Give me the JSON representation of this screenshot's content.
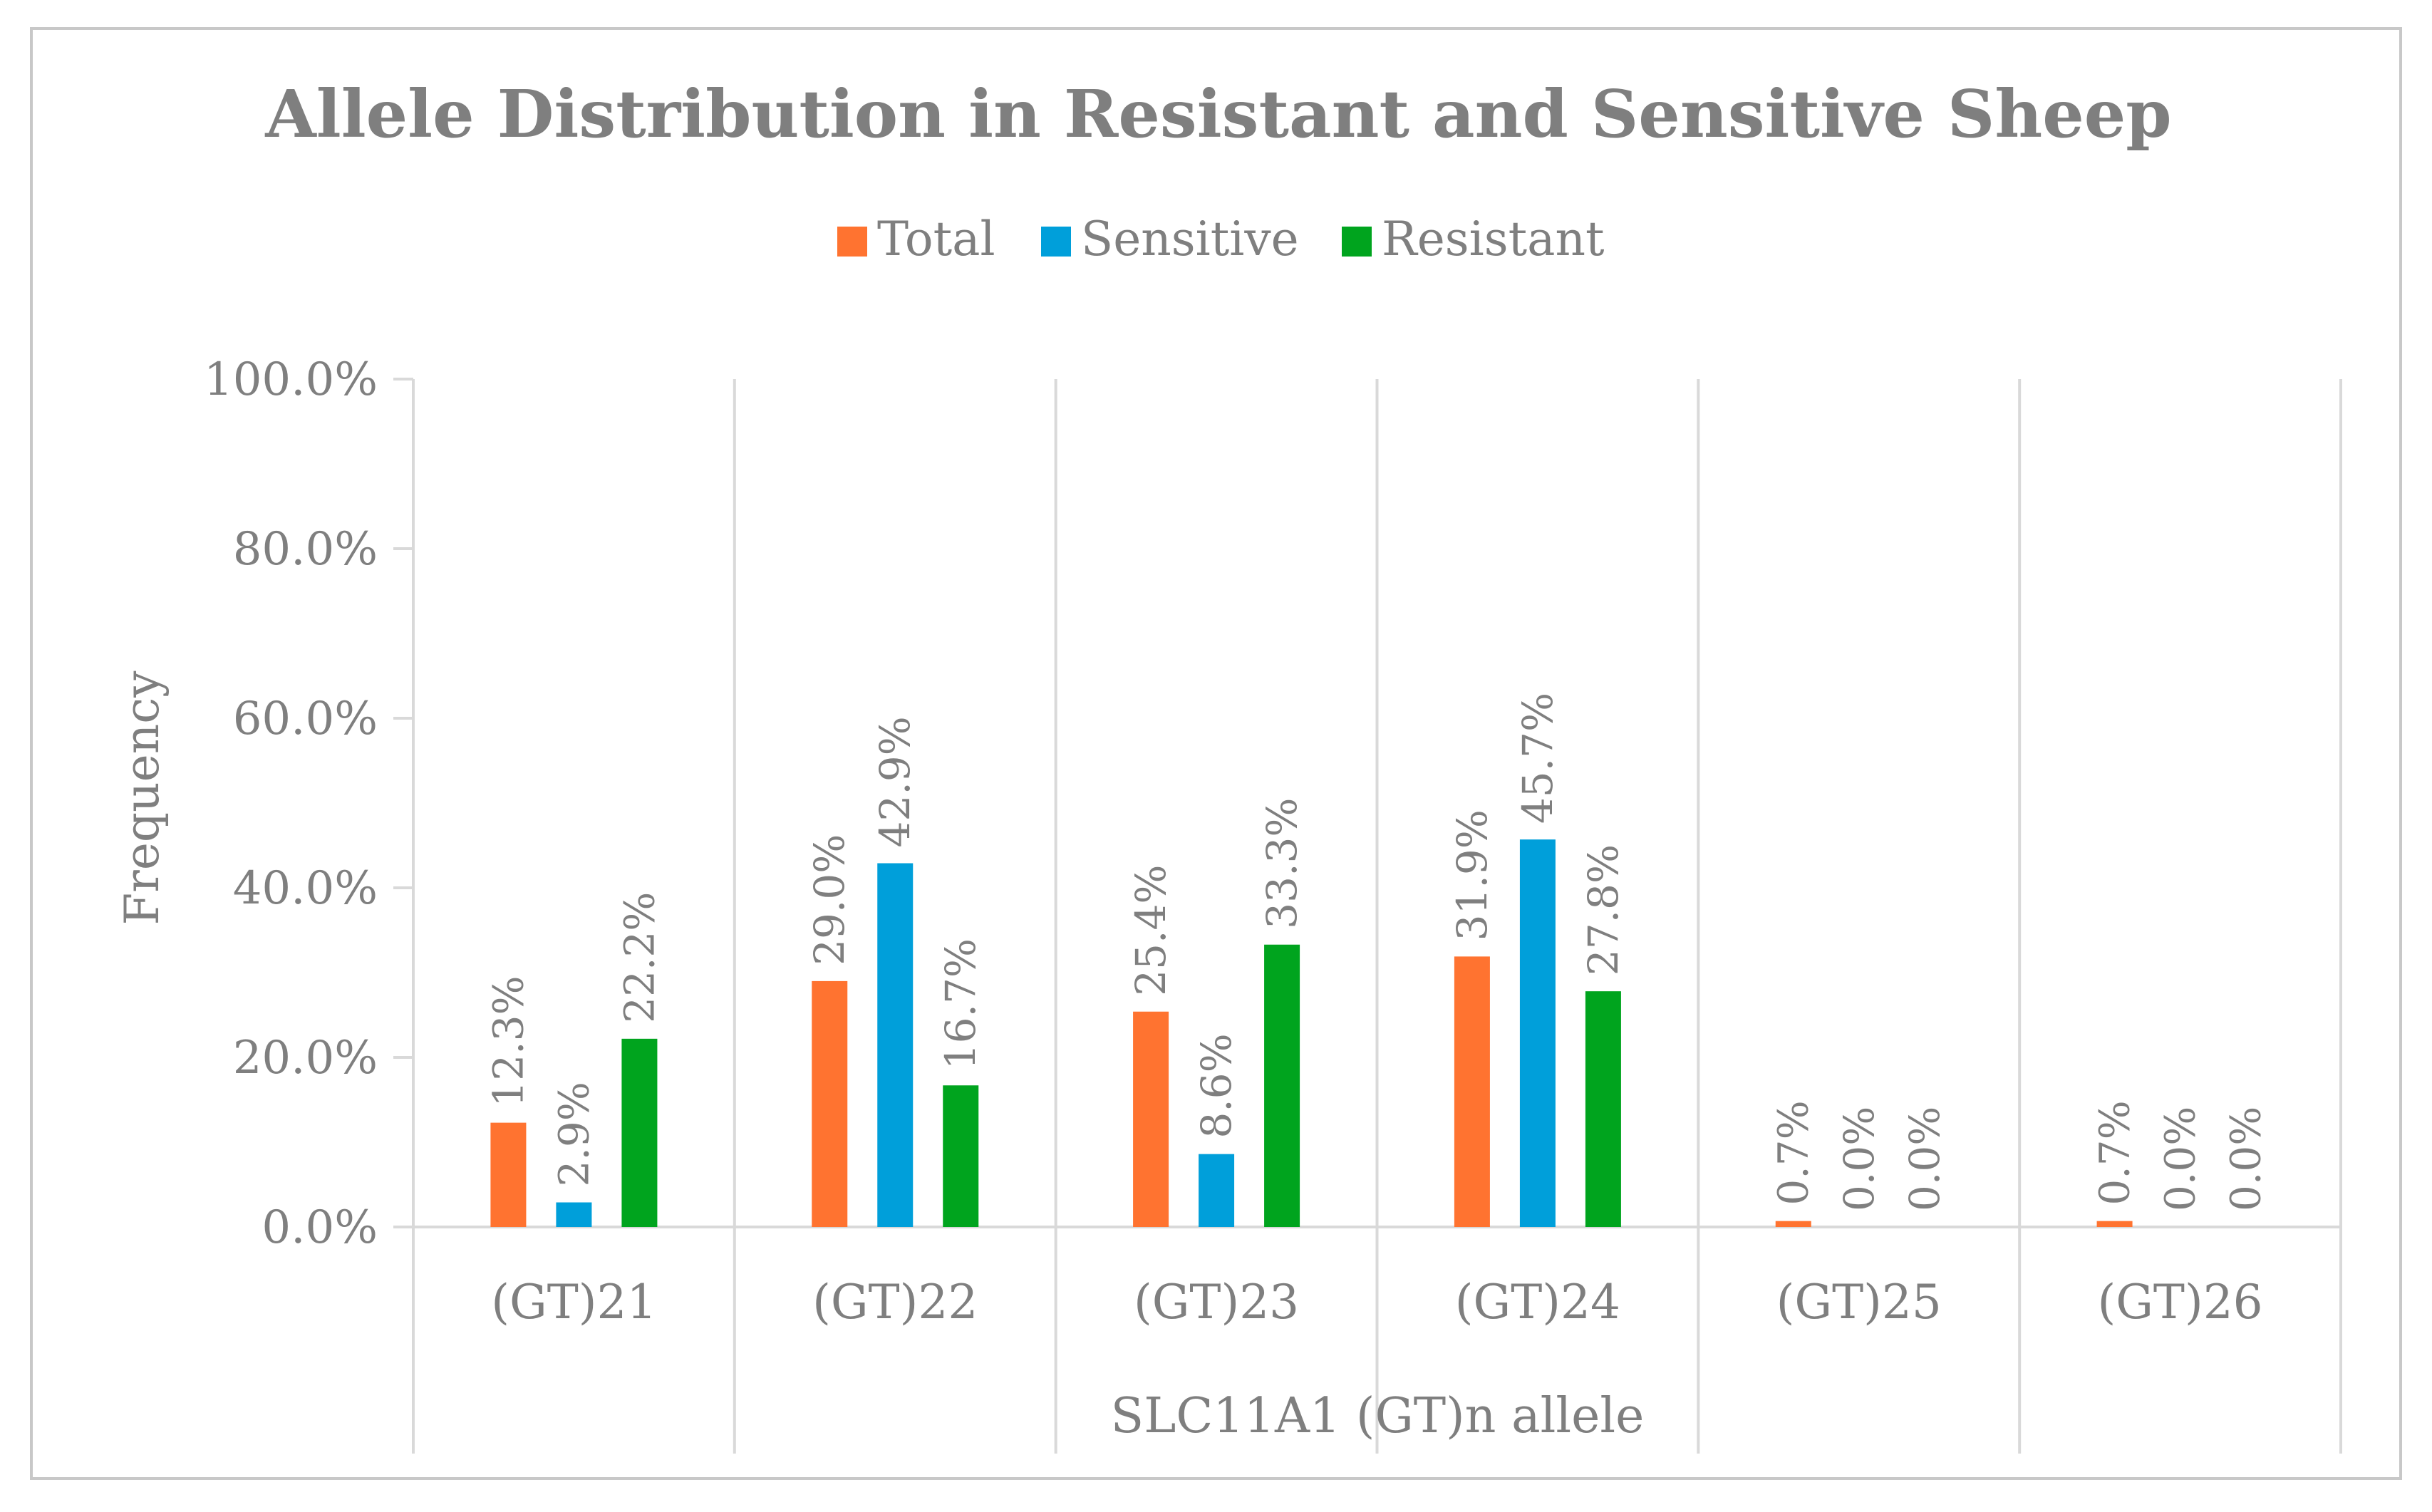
{
  "colors": {
    "total": "#FF7330",
    "sensitive": "#009FDA",
    "resistant": "#00A41E",
    "text": "#7F7F7F",
    "grid": "#D9D9D9",
    "border": "#C8C8C8"
  },
  "chart_data": {
    "type": "bar",
    "title": "Allele Distribution in Resistant and Sensitive Sheep",
    "xlabel": "SLC11A1 (GT)n allele",
    "ylabel": "Frequency",
    "ylim": [
      0,
      100
    ],
    "yticks": [
      "0.0%",
      "20.0%",
      "40.0%",
      "60.0%",
      "80.0%",
      "100.0%"
    ],
    "legend_position": "top",
    "categories": [
      "(GT)21",
      "(GT)22",
      "(GT)23",
      "(GT)24",
      "(GT)25",
      "(GT)26"
    ],
    "series": [
      {
        "name": "Total",
        "color_key": "total",
        "values": [
          12.3,
          29.0,
          25.4,
          31.9,
          0.7,
          0.7
        ],
        "labels": [
          "12.3%",
          "29.0%",
          "25.4%",
          "31.9%",
          "0.7%",
          "0.7%"
        ]
      },
      {
        "name": "Sensitive",
        "color_key": "sensitive",
        "values": [
          2.9,
          42.9,
          8.6,
          45.7,
          0.0,
          0.0
        ],
        "labels": [
          "2.9%",
          "42.9%",
          "8.6%",
          "45.7%",
          "0.0%",
          "0.0%"
        ]
      },
      {
        "name": "Resistant",
        "color_key": "resistant",
        "values": [
          22.2,
          16.7,
          33.3,
          27.8,
          0.0,
          0.0
        ],
        "labels": [
          "22.2%",
          "16.7%",
          "33.3%",
          "27.8%",
          "0.0%",
          "0.0%"
        ]
      }
    ]
  }
}
